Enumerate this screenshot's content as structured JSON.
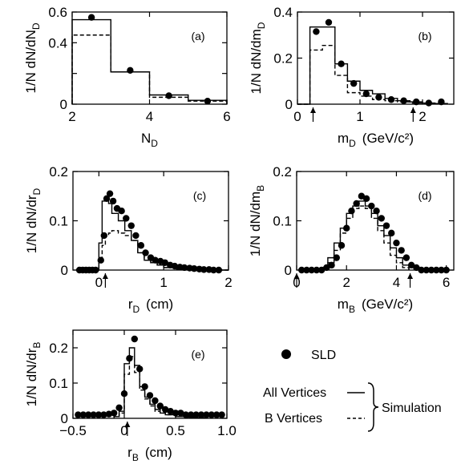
{
  "legend": {
    "data_label": "SLD",
    "all_label": "All Vertices",
    "b_label": "B Vertices",
    "sim_label": "Simulation"
  },
  "chart_data": [
    {
      "id": "a",
      "type": "bar",
      "panel_label": "(a)",
      "xlabel": "N",
      "xlabel_sub": "D",
      "xunit": "",
      "ylabel": "1/N dN/dN",
      "ylabel_sub": "D",
      "xlim": [
        2,
        6
      ],
      "ylim": [
        0,
        0.6
      ],
      "xticks": [
        2,
        4,
        6
      ],
      "xticklabels": [
        "2",
        "4",
        "6"
      ],
      "yticks": [
        0,
        0.2,
        0.4,
        0.6
      ],
      "yticklabels": [
        "0",
        "",
        "0.4",
        "0.6"
      ],
      "bin_edges": [
        2,
        3,
        4,
        5,
        6
      ],
      "series": [
        {
          "key": "all",
          "name": "All Vertices",
          "style": "histogram-solid",
          "values": [
            0.55,
            0.21,
            0.06,
            0.025
          ]
        },
        {
          "key": "b",
          "name": "B Vertices",
          "style": "histogram-dashed",
          "values": [
            0.45,
            0.21,
            0.045,
            0.02
          ]
        },
        {
          "key": "data",
          "name": "SLD",
          "style": "points",
          "x": [
            2.5,
            3.5,
            4.5,
            5.5
          ],
          "y": [
            0.565,
            0.22,
            0.055,
            0.02
          ]
        }
      ],
      "arrows_x": []
    },
    {
      "id": "b",
      "type": "bar",
      "panel_label": "(b)",
      "xlabel": "m",
      "xlabel_sub": "D",
      "xunit": "(GeV/c²)",
      "ylabel": "1/N dN/dm",
      "ylabel_sub": "D",
      "xlim": [
        0,
        2.5
      ],
      "ylim": [
        0,
        0.4
      ],
      "xticks": [
        0,
        1,
        2
      ],
      "xticklabels": [
        "0",
        "1",
        "2"
      ],
      "yticks": [
        0,
        0.2,
        0.4
      ],
      "yticklabels": [
        "0",
        "0.2",
        "0.4"
      ],
      "bin_edges": [
        0,
        0.2,
        0.4,
        0.6,
        0.8,
        1.0,
        1.2,
        1.4,
        1.6,
        1.8,
        2.0,
        2.2,
        2.4
      ],
      "series": [
        {
          "key": "all",
          "name": "All Vertices",
          "style": "histogram-solid",
          "values": [
            0,
            0.335,
            0.335,
            0.175,
            0.1,
            0.06,
            0.045,
            0.025,
            0.015,
            0.01,
            0.005,
            0.003
          ]
        },
        {
          "key": "b",
          "name": "B Vertices",
          "style": "histogram-dashed",
          "values": [
            0,
            0.235,
            0.255,
            0.125,
            0.05,
            0.035,
            0.02,
            0.015,
            0.01,
            0.005,
            0.003,
            0.002
          ]
        },
        {
          "key": "data",
          "name": "SLD",
          "style": "points",
          "x": [
            0.3,
            0.5,
            0.7,
            0.9,
            1.1,
            1.3,
            1.5,
            1.7,
            1.9,
            2.1,
            2.3
          ],
          "y": [
            0.315,
            0.355,
            0.175,
            0.09,
            0.045,
            0.03,
            0.02,
            0.015,
            0.01,
            0.005,
            0.01
          ]
        }
      ],
      "arrows_x": [
        0.25,
        1.85
      ]
    },
    {
      "id": "c",
      "type": "bar",
      "panel_label": "(c)",
      "xlabel": "r",
      "xlabel_sub": "D",
      "xunit": "(cm)",
      "ylabel": "1/N dN/dr",
      "ylabel_sub": "D",
      "xlim": [
        -0.4,
        2.0
      ],
      "ylim": [
        0,
        0.2
      ],
      "xticks": [
        0,
        1,
        2
      ],
      "xticklabels": [
        "0",
        "1",
        "2"
      ],
      "yticks": [
        0,
        0.1,
        0.2
      ],
      "yticklabels": [
        "0",
        "0.1",
        "0.2"
      ],
      "bin_edges": [
        -0.3,
        -0.2,
        -0.1,
        0.0,
        0.05,
        0.1,
        0.15,
        0.2,
        0.3,
        0.4,
        0.5,
        0.6,
        0.7,
        0.8,
        0.9,
        1.0,
        1.2,
        1.4,
        1.6,
        1.8,
        2.0
      ],
      "series": [
        {
          "key": "all",
          "name": "All Vertices",
          "style": "histogram-solid",
          "values": [
            0,
            0,
            0,
            0.055,
            0.14,
            0.145,
            0.135,
            0.115,
            0.1,
            0.08,
            0.06,
            0.035,
            0.02,
            0.015,
            0.01,
            0.005,
            0.002,
            0,
            0,
            0
          ]
        },
        {
          "key": "b",
          "name": "B Vertices",
          "style": "histogram-dashed",
          "values": [
            0,
            0,
            0,
            0.025,
            0.05,
            0.07,
            0.075,
            0.08,
            0.075,
            0.07,
            0.06,
            0.035,
            0.02,
            0.015,
            0.01,
            0.005,
            0.002,
            0,
            0,
            0
          ]
        },
        {
          "key": "data",
          "name": "SLD",
          "style": "points",
          "x": [
            -0.3,
            -0.25,
            -0.2,
            -0.15,
            -0.1,
            -0.05,
            0.03,
            0.08,
            0.12,
            0.17,
            0.22,
            0.28,
            0.35,
            0.42,
            0.5,
            0.57,
            0.65,
            0.72,
            0.8,
            0.87,
            0.95,
            1.02,
            1.1,
            1.17,
            1.25,
            1.32,
            1.4,
            1.47,
            1.55,
            1.62,
            1.7,
            1.77,
            1.85
          ],
          "y": [
            0,
            0,
            0,
            0,
            0,
            0,
            0.02,
            0.07,
            0.145,
            0.155,
            0.14,
            0.125,
            0.12,
            0.105,
            0.09,
            0.07,
            0.05,
            0.035,
            0.025,
            0.02,
            0.018,
            0.015,
            0.01,
            0.008,
            0.006,
            0.005,
            0.004,
            0.003,
            0.002,
            0.001,
            0.001,
            0.0,
            0.0
          ]
        }
      ],
      "arrows_x": [
        0.1
      ]
    },
    {
      "id": "d",
      "type": "bar",
      "panel_label": "(d)",
      "xlabel": "m",
      "xlabel_sub": "B",
      "xunit": "(GeV/c²)",
      "ylabel": "1/N dN/dm",
      "ylabel_sub": "B",
      "xlim": [
        0,
        6.3
      ],
      "ylim": [
        0,
        0.2
      ],
      "xticks": [
        0,
        2,
        4,
        6
      ],
      "xticklabels": [
        "0",
        "2",
        "4",
        "6"
      ],
      "yticks": [
        0,
        0.1,
        0.2
      ],
      "yticklabels": [
        "0",
        "0.1",
        "0.2"
      ],
      "bin_edges": [
        1.0,
        1.25,
        1.5,
        1.75,
        2.0,
        2.25,
        2.5,
        2.75,
        3.0,
        3.25,
        3.5,
        3.75,
        4.0,
        4.25,
        4.5
      ],
      "series": [
        {
          "key": "all",
          "name": "All Vertices",
          "style": "histogram-solid",
          "values": [
            0.005,
            0.025,
            0.055,
            0.085,
            0.115,
            0.13,
            0.14,
            0.13,
            0.115,
            0.09,
            0.07,
            0.045,
            0.025,
            0.01
          ]
        },
        {
          "key": "b",
          "name": "B Vertices",
          "style": "histogram-dashed",
          "values": [
            0.003,
            0.015,
            0.04,
            0.075,
            0.105,
            0.125,
            0.13,
            0.125,
            0.105,
            0.08,
            0.055,
            0.03,
            0.015,
            0.005
          ]
        },
        {
          "key": "data",
          "name": "SLD",
          "style": "points",
          "x": [
            0.2,
            0.4,
            0.6,
            0.8,
            1.0,
            1.2,
            1.4,
            1.6,
            1.8,
            2.0,
            2.2,
            2.4,
            2.6,
            2.8,
            3.0,
            3.2,
            3.4,
            3.6,
            3.8,
            4.0,
            4.2,
            4.4,
            4.6,
            4.8,
            5.0,
            5.2,
            5.4,
            5.6,
            5.8,
            6.0
          ],
          "y": [
            0,
            0,
            0,
            0,
            0,
            0.005,
            0.01,
            0.025,
            0.05,
            0.085,
            0.12,
            0.135,
            0.15,
            0.145,
            0.13,
            0.12,
            0.105,
            0.09,
            0.075,
            0.055,
            0.04,
            0.025,
            0.01,
            0.005,
            0,
            0,
            0,
            0,
            0,
            0
          ]
        }
      ],
      "arrows_x": [
        0,
        4.55
      ]
    },
    {
      "id": "e",
      "type": "bar",
      "panel_label": "(e)",
      "xlabel": "r",
      "xlabel_sub": "B",
      "xunit": "(cm)",
      "ylabel": "1/N dN/dr",
      "ylabel_sub": "B",
      "xlim": [
        -0.5,
        1.0
      ],
      "ylim": [
        0,
        0.25
      ],
      "xticks": [
        -0.5,
        0,
        0.5,
        1.0
      ],
      "xticklabels": [
        "−0.5",
        "0",
        "0.5",
        "1.0"
      ],
      "yticks": [
        0,
        0.1,
        0.2
      ],
      "yticklabels": [
        "0",
        "0.1",
        "0.2"
      ],
      "bin_edges": [
        -0.1,
        -0.05,
        0.0,
        0.05,
        0.1,
        0.15,
        0.2,
        0.25,
        0.3,
        0.35,
        0.4,
        0.5,
        0.6,
        0.7,
        0.8
      ],
      "series": [
        {
          "key": "all",
          "name": "All Vertices",
          "style": "histogram-solid",
          "values": [
            0.005,
            0.02,
            0.155,
            0.2,
            0.15,
            0.09,
            0.06,
            0.04,
            0.025,
            0.015,
            0.01,
            0.005,
            0.003,
            0.001
          ]
        },
        {
          "key": "b",
          "name": "B Vertices",
          "style": "histogram-dashed",
          "values": [
            0.005,
            0.015,
            0.125,
            0.175,
            0.13,
            0.08,
            0.055,
            0.035,
            0.02,
            0.015,
            0.01,
            0.005,
            0.003,
            0.001
          ]
        },
        {
          "key": "data",
          "name": "SLD",
          "style": "points",
          "x": [
            -0.45,
            -0.4,
            -0.35,
            -0.3,
            -0.25,
            -0.2,
            -0.15,
            -0.1,
            -0.05,
            0.0,
            0.05,
            0.1,
            0.15,
            0.2,
            0.25,
            0.3,
            0.35,
            0.4,
            0.45,
            0.5,
            0.55,
            0.6,
            0.65,
            0.7,
            0.75,
            0.8,
            0.85,
            0.9,
            0.95
          ],
          "y": [
            0.01,
            0.01,
            0.01,
            0.01,
            0.01,
            0.01,
            0.012,
            0.015,
            0.03,
            0.07,
            0.17,
            0.225,
            0.14,
            0.09,
            0.065,
            0.05,
            0.035,
            0.025,
            0.02,
            0.015,
            0.015,
            0.01,
            0.01,
            0.01,
            0.01,
            0.01,
            0.01,
            0.01,
            0.01
          ]
        }
      ],
      "arrows_x": [
        0.03
      ]
    }
  ]
}
